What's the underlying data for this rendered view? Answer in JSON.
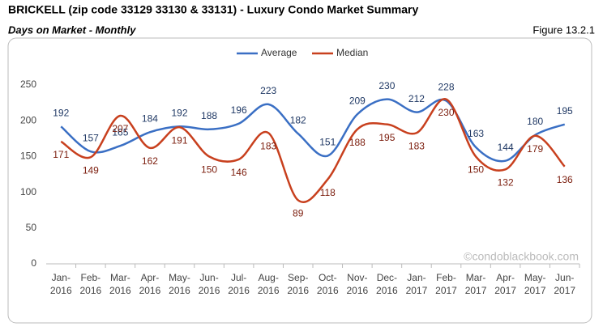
{
  "chart_data": {
    "type": "line",
    "title": "BRICKELL (zip code 33129 33130 & 33131) - Luxury Condo Market Summary",
    "subtitle": "Days on Market - Monthly",
    "figure_label": "Figure 13.2.1",
    "watermark": "©condoblackbook.com",
    "categories": [
      "Jan-2016",
      "Feb-2016",
      "Mar-2016",
      "Apr-2016",
      "May-2016",
      "Jun-2016",
      "Jul-2016",
      "Aug-2016",
      "Sep-2016",
      "Oct-2016",
      "Nov-2016",
      "Dec-2016",
      "Jan-2017",
      "Feb-2017",
      "Mar-2017",
      "Apr-2017",
      "May-2017",
      "Jun-2017"
    ],
    "series": [
      {
        "name": "Average",
        "color": "#3a6fc4",
        "values": [
          192,
          157,
          165,
          184,
          192,
          188,
          196,
          223,
          182,
          151,
          209,
          230,
          212,
          228,
          163,
          144,
          180,
          195
        ]
      },
      {
        "name": "Median",
        "color": "#c8401e",
        "values": [
          171,
          149,
          207,
          162,
          191,
          150,
          146,
          183,
          89,
          118,
          188,
          195,
          183,
          230,
          150,
          132,
          179,
          136
        ]
      }
    ],
    "ylim": [
      0,
      250
    ],
    "yticks": [
      0,
      50,
      100,
      150,
      200,
      250
    ],
    "grid": false,
    "legend": "top"
  }
}
